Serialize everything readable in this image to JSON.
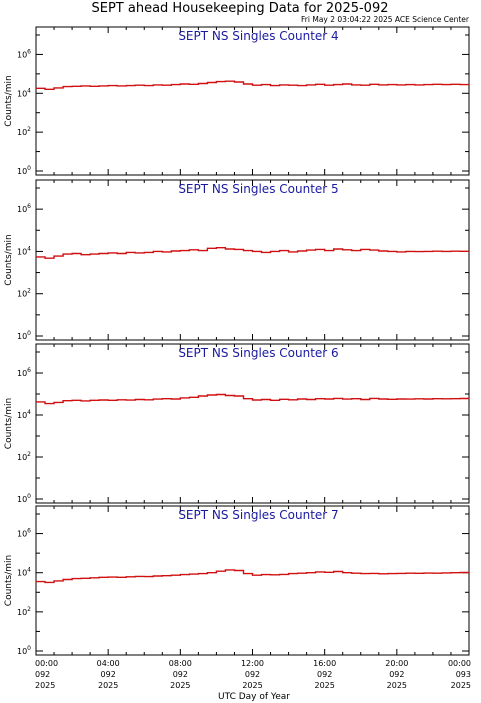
{
  "header": {
    "title": "SEPT ahead Housekeeping Data for 2025-092",
    "timestamp": "Fri May  2 03:04:22 2025 ACE Science Center"
  },
  "xaxis": {
    "label": "UTC Day of Year",
    "range_hours": [
      0,
      24
    ],
    "ticks": [
      {
        "hour": 0,
        "time": "00:00",
        "doy": "092",
        "year": "2025"
      },
      {
        "hour": 4,
        "time": "04:00",
        "doy": "092",
        "year": "2025"
      },
      {
        "hour": 8,
        "time": "08:00",
        "doy": "092",
        "year": "2025"
      },
      {
        "hour": 12,
        "time": "12:00",
        "doy": "092",
        "year": "2025"
      },
      {
        "hour": 16,
        "time": "16:00",
        "doy": "092",
        "year": "2025"
      },
      {
        "hour": 20,
        "time": "20:00",
        "doy": "092",
        "year": "2025"
      },
      {
        "hour": 24,
        "time": "00:00",
        "doy": "093",
        "year": "2025"
      }
    ]
  },
  "yaxis": {
    "label": "Counts/min",
    "scale": "log",
    "range": [
      1,
      10000000
    ],
    "ticks": [
      {
        "value": 1,
        "base": "10",
        "exp": "0"
      },
      {
        "value": 100,
        "base": "10",
        "exp": "2"
      },
      {
        "value": 10000,
        "base": "10",
        "exp": "4"
      },
      {
        "value": 1000000,
        "base": "10",
        "exp": "6"
      }
    ]
  },
  "colors": {
    "series": "#d01010",
    "panel_title": "#1a1aa0",
    "axes": "#000000"
  },
  "chart_data": [
    {
      "type": "line",
      "title": "SEPT NS Singles Counter 4",
      "xlabel": "",
      "ylabel": "Counts/min",
      "yscale": "log",
      "ylim": [
        1,
        10000000
      ],
      "xlim": [
        0,
        24
      ],
      "x": [
        0,
        0.5,
        1,
        1.5,
        2,
        2.5,
        3,
        3.5,
        4,
        4.5,
        5,
        5.5,
        6,
        6.5,
        7,
        7.5,
        8,
        8.5,
        9,
        9.5,
        10,
        10.5,
        11,
        11.5,
        12,
        12.5,
        13,
        13.5,
        14,
        14.5,
        15,
        15.5,
        16,
        16.5,
        17,
        17.5,
        18,
        18.5,
        19,
        19.5,
        20,
        20.5,
        21,
        21.5,
        22,
        22.5,
        23,
        23.5,
        24
      ],
      "values": [
        18000,
        16000,
        19000,
        22000,
        23000,
        24000,
        23000,
        24000,
        25000,
        24000,
        25000,
        26000,
        25000,
        27000,
        26000,
        28000,
        30000,
        29000,
        32000,
        36000,
        40000,
        42000,
        38000,
        30000,
        26000,
        28000,
        25000,
        27000,
        26000,
        25000,
        27000,
        29000,
        26000,
        28000,
        30000,
        27000,
        26000,
        29000,
        27000,
        28000,
        27000,
        28000,
        27000,
        28000,
        29000,
        28000,
        29000,
        28000,
        27000
      ]
    },
    {
      "type": "line",
      "title": "SEPT NS Singles Counter 5",
      "xlabel": "",
      "ylabel": "Counts/min",
      "yscale": "log",
      "ylim": [
        1,
        10000000
      ],
      "xlim": [
        0,
        24
      ],
      "x": [
        0,
        0.5,
        1,
        1.5,
        2,
        2.5,
        3,
        3.5,
        4,
        4.5,
        5,
        5.5,
        6,
        6.5,
        7,
        7.5,
        8,
        8.5,
        9,
        9.5,
        10,
        10.5,
        11,
        11.5,
        12,
        12.5,
        13,
        13.5,
        14,
        14.5,
        15,
        15.5,
        16,
        16.5,
        17,
        17.5,
        18,
        18.5,
        19,
        19.5,
        20,
        20.5,
        21,
        21.5,
        22,
        22.5,
        23,
        23.5,
        24
      ],
      "values": [
        5500,
        4800,
        6000,
        7500,
        8000,
        7000,
        7500,
        8000,
        8500,
        8000,
        9000,
        8500,
        9000,
        10000,
        9500,
        10500,
        11000,
        12000,
        11000,
        14000,
        15000,
        13000,
        12500,
        11000,
        10000,
        9000,
        10000,
        11000,
        9500,
        10500,
        11500,
        12500,
        11000,
        13000,
        12000,
        11000,
        12500,
        11500,
        10500,
        10000,
        9500,
        10000,
        9800,
        10000,
        10200,
        10000,
        10300,
        10100,
        10000
      ]
    },
    {
      "type": "line",
      "title": "SEPT NS Singles Counter 6",
      "xlabel": "",
      "ylabel": "Counts/min",
      "yscale": "log",
      "ylim": [
        1,
        10000000
      ],
      "xlim": [
        0,
        24
      ],
      "x": [
        0,
        0.5,
        1,
        1.5,
        2,
        2.5,
        3,
        3.5,
        4,
        4.5,
        5,
        5.5,
        6,
        6.5,
        7,
        7.5,
        8,
        8.5,
        9,
        9.5,
        10,
        10.5,
        11,
        11.5,
        12,
        12.5,
        13,
        13.5,
        14,
        14.5,
        15,
        15.5,
        16,
        16.5,
        17,
        17.5,
        18,
        18.5,
        19,
        19.5,
        20,
        20.5,
        21,
        21.5,
        22,
        22.5,
        23,
        23.5,
        24
      ],
      "values": [
        42000,
        35000,
        40000,
        48000,
        50000,
        47000,
        50000,
        52000,
        50000,
        53000,
        51000,
        55000,
        53000,
        57000,
        60000,
        58000,
        65000,
        70000,
        80000,
        90000,
        95000,
        85000,
        80000,
        60000,
        52000,
        55000,
        50000,
        56000,
        53000,
        58000,
        55000,
        60000,
        58000,
        62000,
        57000,
        60000,
        55000,
        62000,
        58000,
        56000,
        58000,
        57000,
        59000,
        58000,
        60000,
        59000,
        60000,
        61000,
        60000
      ]
    },
    {
      "type": "line",
      "title": "SEPT NS Singles Counter 7",
      "xlabel": "UTC Day of Year",
      "ylabel": "Counts/min",
      "yscale": "log",
      "ylim": [
        1,
        10000000
      ],
      "xlim": [
        0,
        24
      ],
      "x": [
        0,
        0.5,
        1,
        1.5,
        2,
        2.5,
        3,
        3.5,
        4,
        4.5,
        5,
        5.5,
        6,
        6.5,
        7,
        7.5,
        8,
        8.5,
        9,
        9.5,
        10,
        10.5,
        11,
        11.5,
        12,
        12.5,
        13,
        13.5,
        14,
        14.5,
        15,
        15.5,
        16,
        16.5,
        17,
        17.5,
        18,
        18.5,
        19,
        19.5,
        20,
        20.5,
        21,
        21.5,
        22,
        22.5,
        23,
        23.5,
        24
      ],
      "values": [
        3500,
        3200,
        3800,
        4500,
        5000,
        5200,
        5500,
        5800,
        6000,
        5800,
        6200,
        6500,
        6300,
        6800,
        7000,
        7500,
        8000,
        8500,
        9000,
        10000,
        12000,
        14000,
        13000,
        9000,
        7500,
        8000,
        7800,
        8200,
        9000,
        9500,
        10000,
        11000,
        10500,
        11500,
        10000,
        9500,
        9000,
        9200,
        8800,
        9000,
        9200,
        9500,
        9300,
        9600,
        9400,
        9800,
        10000,
        10200,
        11000
      ]
    }
  ]
}
